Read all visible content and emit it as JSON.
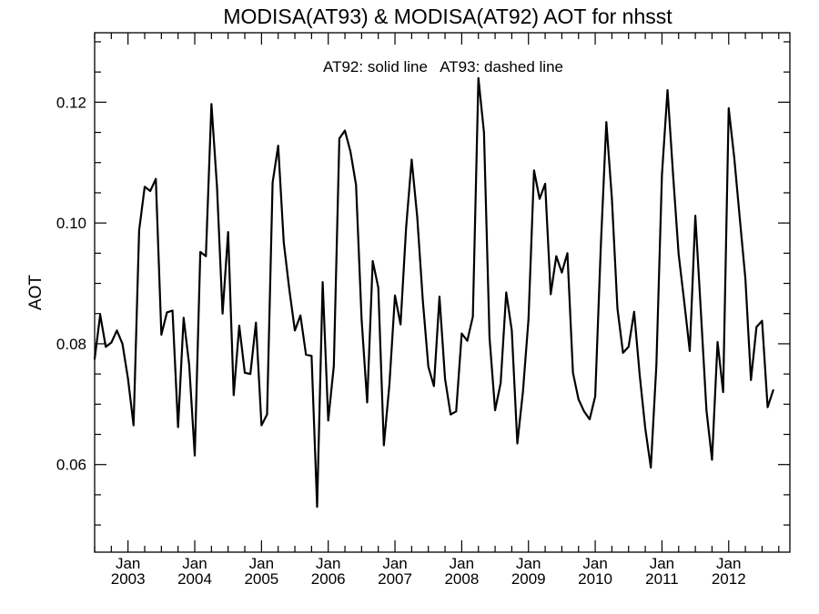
{
  "chart_data": {
    "type": "line",
    "title": "MODISA(AT93) & MODISA(AT92)  AOT for nhsst",
    "annotation": "AT92: solid line   AT93: dashed line",
    "xlabel": "",
    "ylabel": "AOT",
    "x_tick_labels": [
      {
        "month": "Jan",
        "year": "2003"
      },
      {
        "month": "Jan",
        "year": "2004"
      },
      {
        "month": "Jan",
        "year": "2005"
      },
      {
        "month": "Jan",
        "year": "2006"
      },
      {
        "month": "Jan",
        "year": "2007"
      },
      {
        "month": "Jan",
        "year": "2008"
      },
      {
        "month": "Jan",
        "year": "2009"
      },
      {
        "month": "Jan",
        "year": "2010"
      },
      {
        "month": "Jan",
        "year": "2011"
      },
      {
        "month": "Jan",
        "year": "2012"
      }
    ],
    "y_tick_labels": [
      "0.06",
      "0.08",
      "0.10",
      "0.12"
    ],
    "xlim": [
      "2002-07",
      "2012-12"
    ],
    "ylim": [
      0.0455,
      0.1315
    ],
    "grid": false,
    "series": [
      {
        "style": "solid",
        "color": "#000000",
        "points": [
          [
            "2002-07",
            0.0775
          ],
          [
            "2002-08",
            0.0848
          ],
          [
            "2002-09",
            0.0795
          ],
          [
            "2002-10",
            0.0802
          ],
          [
            "2002-11",
            0.0822
          ],
          [
            "2002-12",
            0.08
          ],
          [
            "2003-01",
            0.0742
          ],
          [
            "2003-02",
            0.0665
          ],
          [
            "2003-03",
            0.0988
          ],
          [
            "2003-04",
            0.106
          ],
          [
            "2003-05",
            0.1053
          ],
          [
            "2003-06",
            0.1073
          ],
          [
            "2003-07",
            0.0815
          ],
          [
            "2003-08",
            0.0852
          ],
          [
            "2003-09",
            0.0855
          ],
          [
            "2003-10",
            0.0662
          ],
          [
            "2003-11",
            0.0843
          ],
          [
            "2003-12",
            0.0765
          ],
          [
            "2004-01",
            0.0615
          ],
          [
            "2004-02",
            0.0952
          ],
          [
            "2004-03",
            0.0945
          ],
          [
            "2004-04",
            0.1197
          ],
          [
            "2004-05",
            0.106
          ],
          [
            "2004-06",
            0.085
          ],
          [
            "2004-07",
            0.0985
          ],
          [
            "2004-08",
            0.0715
          ],
          [
            "2004-09",
            0.083
          ],
          [
            "2004-10",
            0.0752
          ],
          [
            "2004-11",
            0.075
          ],
          [
            "2004-12",
            0.0835
          ],
          [
            "2005-01",
            0.0665
          ],
          [
            "2005-02",
            0.0683
          ],
          [
            "2005-03",
            0.1067
          ],
          [
            "2005-04",
            0.1128
          ],
          [
            "2005-05",
            0.0968
          ],
          [
            "2005-06",
            0.089
          ],
          [
            "2005-07",
            0.0822
          ],
          [
            "2005-08",
            0.0847
          ],
          [
            "2005-09",
            0.0782
          ],
          [
            "2005-10",
            0.078
          ],
          [
            "2005-11",
            0.053
          ],
          [
            "2005-12",
            0.0902
          ],
          [
            "2006-01",
            0.0673
          ],
          [
            "2006-02",
            0.0763
          ],
          [
            "2006-03",
            0.114
          ],
          [
            "2006-04",
            0.1153
          ],
          [
            "2006-05",
            0.1118
          ],
          [
            "2006-06",
            0.1063
          ],
          [
            "2006-07",
            0.084
          ],
          [
            "2006-08",
            0.0703
          ],
          [
            "2006-09",
            0.0937
          ],
          [
            "2006-10",
            0.0893
          ],
          [
            "2006-11",
            0.0632
          ],
          [
            "2006-12",
            0.0733
          ],
          [
            "2007-01",
            0.088
          ],
          [
            "2007-02",
            0.0832
          ],
          [
            "2007-03",
            0.0992
          ],
          [
            "2007-04",
            0.1105
          ],
          [
            "2007-05",
            0.101
          ],
          [
            "2007-06",
            0.0872
          ],
          [
            "2007-07",
            0.0762
          ],
          [
            "2007-08",
            0.073
          ],
          [
            "2007-09",
            0.0878
          ],
          [
            "2007-10",
            0.0742
          ],
          [
            "2007-11",
            0.0683
          ],
          [
            "2007-12",
            0.0688
          ],
          [
            "2008-01",
            0.0817
          ],
          [
            "2008-02",
            0.0805
          ],
          [
            "2008-03",
            0.0845
          ],
          [
            "2008-04",
            0.124
          ],
          [
            "2008-05",
            0.115
          ],
          [
            "2008-06",
            0.081
          ],
          [
            "2008-07",
            0.069
          ],
          [
            "2008-08",
            0.0735
          ],
          [
            "2008-09",
            0.0885
          ],
          [
            "2008-10",
            0.0822
          ],
          [
            "2008-11",
            0.0635
          ],
          [
            "2008-12",
            0.072
          ],
          [
            "2009-01",
            0.084
          ],
          [
            "2009-02",
            0.1087
          ],
          [
            "2009-03",
            0.104
          ],
          [
            "2009-04",
            0.1065
          ],
          [
            "2009-05",
            0.0882
          ],
          [
            "2009-06",
            0.0945
          ],
          [
            "2009-07",
            0.0918
          ],
          [
            "2009-08",
            0.095
          ],
          [
            "2009-09",
            0.0752
          ],
          [
            "2009-10",
            0.0708
          ],
          [
            "2009-11",
            0.0688
          ],
          [
            "2009-12",
            0.0675
          ],
          [
            "2010-01",
            0.0713
          ],
          [
            "2010-02",
            0.096
          ],
          [
            "2010-03",
            0.1167
          ],
          [
            "2010-04",
            0.104
          ],
          [
            "2010-05",
            0.0858
          ],
          [
            "2010-06",
            0.0785
          ],
          [
            "2010-07",
            0.0795
          ],
          [
            "2010-08",
            0.0853
          ],
          [
            "2010-09",
            0.0748
          ],
          [
            "2010-10",
            0.066
          ],
          [
            "2010-11",
            0.0595
          ],
          [
            "2010-12",
            0.0765
          ],
          [
            "2011-01",
            0.108
          ],
          [
            "2011-02",
            0.122
          ],
          [
            "2011-03",
            0.108
          ],
          [
            "2011-04",
            0.0948
          ],
          [
            "2011-05",
            0.087
          ],
          [
            "2011-06",
            0.0788
          ],
          [
            "2011-07",
            0.1012
          ],
          [
            "2011-08",
            0.0853
          ],
          [
            "2011-09",
            0.069
          ],
          [
            "2011-10",
            0.0608
          ],
          [
            "2011-11",
            0.0803
          ],
          [
            "2011-12",
            0.072
          ],
          [
            "2012-01",
            0.119
          ],
          [
            "2012-02",
            0.1108
          ],
          [
            "2012-03",
            0.1007
          ],
          [
            "2012-04",
            0.0908
          ],
          [
            "2012-05",
            0.074
          ],
          [
            "2012-06",
            0.0828
          ],
          [
            "2012-07",
            0.0838
          ],
          [
            "2012-08",
            0.0695
          ],
          [
            "2012-09",
            0.0723
          ]
        ]
      }
    ]
  }
}
